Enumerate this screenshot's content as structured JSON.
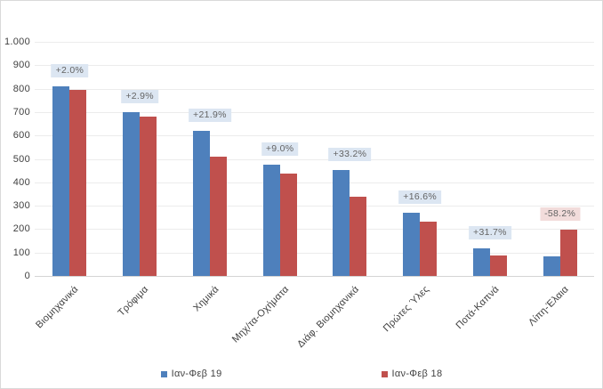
{
  "chart_data": {
    "type": "bar",
    "title": "",
    "categories": [
      "Βιομηχανικά",
      "Τρόφιμα",
      "Χημικά",
      "Μηχ/τα-Οχήματα",
      "Διάφ. Βιομηχανικά",
      "Πρώτες Ύλες",
      "Ποτά-Καπνά",
      "Λίπη-Έλαια"
    ],
    "series": [
      {
        "name": "Ιαν-Φεβ 19",
        "color": "#4E80BC",
        "values": [
          810,
          700,
          620,
          475,
          452,
          271,
          117,
          82
        ]
      },
      {
        "name": "Ιαν-Φεβ 18",
        "color": "#C0504D",
        "values": [
          794,
          680,
          509,
          436,
          339,
          232,
          89,
          196
        ]
      }
    ],
    "pct_labels": [
      "+2.0%",
      "+2.9%",
      "+21.9%",
      "+9.0%",
      "+33.2%",
      "+16.6%",
      "+31.7%",
      "-58.2%"
    ],
    "ylim": [
      0,
      1000
    ],
    "y_tick_labels": [
      "0",
      "100",
      "200",
      "300",
      "400",
      "500",
      "600",
      "700",
      "800",
      "900",
      "1.000"
    ],
    "grid": true,
    "legend_position": "bottom",
    "colors": {
      "series1": "#4E80BC",
      "series2": "#C0504D",
      "pct_positive_bg": "#DCE6F2",
      "pct_negative_bg": "#F2DCDB",
      "pct_text": "#636363",
      "axis_text": "#3F3F3F",
      "gridline": "#ECECEC",
      "frame_border": "#D9D9D9"
    }
  }
}
